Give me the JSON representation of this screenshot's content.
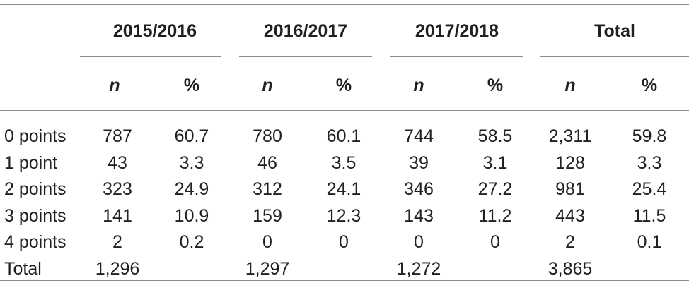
{
  "table": {
    "years": [
      "2015/2016",
      "2016/2017",
      "2017/2018",
      "Total"
    ],
    "sub_headers": [
      "n",
      "%",
      "n",
      "%",
      "n",
      "%",
      "n",
      "%"
    ],
    "rows": [
      {
        "label": "0 points",
        "values": [
          "787",
          "60.7",
          "780",
          "60.1",
          "744",
          "58.5",
          "2,311",
          "59.8"
        ]
      },
      {
        "label": "1 point",
        "values": [
          "43",
          "3.3",
          "46",
          "3.5",
          "39",
          "3.1",
          "128",
          "3.3"
        ]
      },
      {
        "label": "2 points",
        "values": [
          "323",
          "24.9",
          "312",
          "24.1",
          "346",
          "27.2",
          "981",
          "25.4"
        ]
      },
      {
        "label": "3 points",
        "values": [
          "141",
          "10.9",
          "159",
          "12.3",
          "143",
          "11.2",
          "443",
          "11.5"
        ]
      },
      {
        "label": "4 points",
        "values": [
          "2",
          "0.2",
          "0",
          "0",
          "0",
          "0",
          "2",
          "0.1"
        ]
      },
      {
        "label": "Total",
        "values": [
          "1,296",
          "",
          "1,297",
          "",
          "1,272",
          "",
          "3,865",
          ""
        ]
      }
    ]
  }
}
